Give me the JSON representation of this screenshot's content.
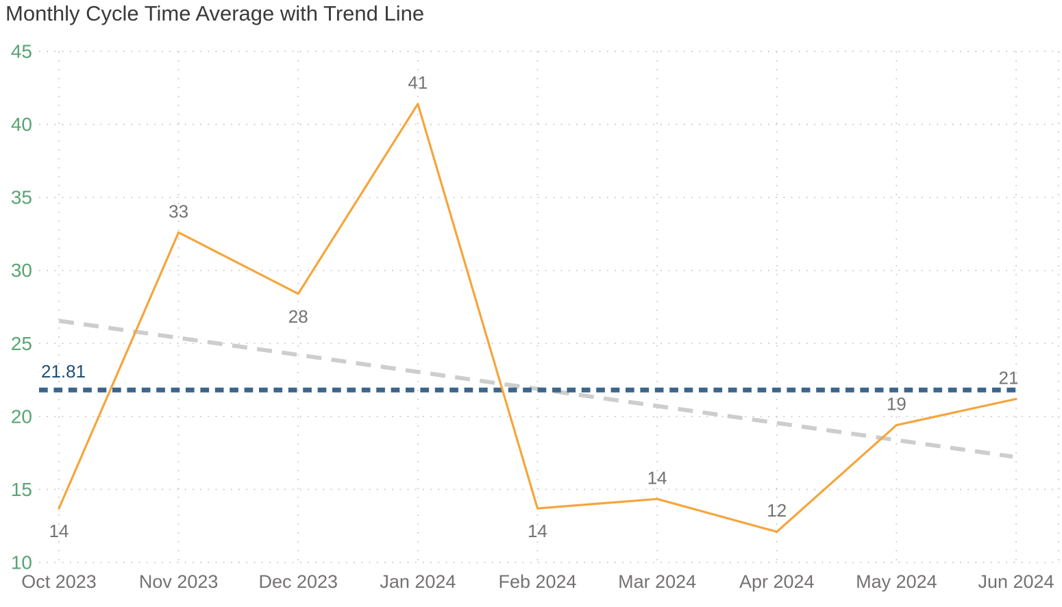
{
  "chart_data": {
    "type": "line",
    "title": "Monthly Cycle Time Average with Trend Line",
    "xlabel": "",
    "ylabel": "",
    "categories": [
      "Oct 2023",
      "Nov 2023",
      "Dec 2023",
      "Jan 2024",
      "Feb 2024",
      "Mar 2024",
      "Apr 2024",
      "May 2024",
      "Jun 2024"
    ],
    "series": [
      {
        "name": "Monthly Cycle Time Average",
        "type": "line",
        "color": "#F5A53C",
        "values": [
          14,
          33,
          28,
          41,
          14,
          14,
          12,
          19,
          21
        ],
        "plotted_values": [
          13.7,
          32.6,
          28.4,
          41.4,
          13.7,
          14.35,
          12.1,
          19.4,
          21.2
        ],
        "data_labels": [
          "14",
          "33",
          "28",
          "41",
          "14",
          "14",
          "12",
          "19",
          "21"
        ],
        "label_side": [
          "below",
          "above",
          "below",
          "above",
          "below",
          "above",
          "above",
          "above",
          "above"
        ]
      },
      {
        "name": "Average reference line",
        "type": "reference-line",
        "value": 21.81,
        "label": "21.81",
        "color": "#3E6489",
        "label_color": "#1F4E79"
      },
      {
        "name": "Trend Line",
        "type": "trend-line",
        "start_value": 26.55,
        "end_value": 17.25,
        "color": "#CDCDCD"
      }
    ],
    "ylim": [
      10,
      45
    ],
    "yticks": [
      45,
      40,
      35,
      30,
      25,
      20,
      15,
      10
    ],
    "ytick_labels": [
      "45",
      "40",
      "35",
      "30",
      "25",
      "20",
      "15",
      "10"
    ],
    "grid": "dotted",
    "legend_position": "none",
    "colors": {
      "series_line": "#F5A53C",
      "average_line": "#3E6489",
      "average_label": "#1F4E79",
      "trend_line": "#CDCDCD",
      "y_tick_text": "#58A473",
      "x_tick_text": "#757171",
      "data_label_text": "#757171",
      "title_text": "#3A3A3A",
      "gridline": "#C8C8C8"
    }
  }
}
